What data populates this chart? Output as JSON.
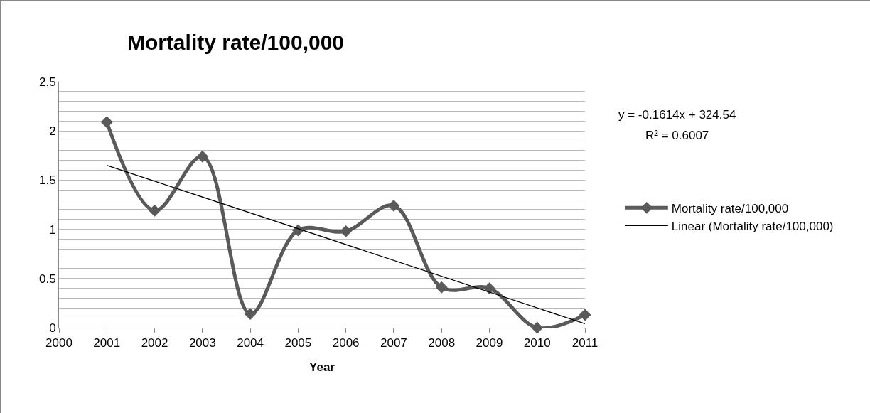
{
  "chart_data": {
    "type": "line",
    "title": "Mortality rate/100,000",
    "xlabel": "Year",
    "x": [
      2001,
      2002,
      2003,
      2004,
      2005,
      2006,
      2007,
      2008,
      2009,
      2010,
      2011
    ],
    "series": [
      {
        "name": "Mortality rate/100,000",
        "color": "#5a5a5a",
        "values": [
          2.09,
          1.19,
          1.74,
          0.14,
          0.99,
          0.98,
          1.24,
          0.41,
          0.4,
          0,
          0.13
        ],
        "marker": "diamond"
      },
      {
        "name": "Linear (Mortality rate/100,000)",
        "color": "#000000",
        "x": [
          2001,
          2011
        ],
        "values": [
          1.65,
          0.04
        ],
        "marker": "none"
      }
    ],
    "annotations": [
      "y = -0.1614x + 324.54",
      "R² = 0.6007"
    ],
    "xlim": [
      2000,
      2011
    ],
    "xticks": [
      2000,
      2001,
      2002,
      2003,
      2004,
      2005,
      2006,
      2007,
      2008,
      2009,
      2010,
      2011
    ],
    "ylim": [
      0,
      2.5
    ],
    "yticks": [
      0,
      {
        "value": 0.1,
        "label": null
      },
      {
        "value": 0.2,
        "label": null
      },
      {
        "value": 0.3,
        "label": null
      },
      {
        "value": 0.4,
        "label": null
      },
      0.5,
      {
        "value": 0.6,
        "label": null
      },
      {
        "value": 0.7,
        "label": null
      },
      {
        "value": 0.8,
        "label": null
      },
      {
        "value": 0.9,
        "label": null
      },
      1,
      {
        "value": 1.1,
        "label": null
      },
      {
        "value": 1.2,
        "label": null
      },
      {
        "value": 1.3,
        "label": null
      },
      {
        "value": 1.4,
        "label": null
      },
      1.5,
      {
        "value": 1.6,
        "label": null
      },
      {
        "value": 1.7,
        "label": null
      },
      {
        "value": 1.8,
        "label": null
      },
      {
        "value": 1.9,
        "label": null
      },
      2,
      {
        "value": 2.1,
        "label": null
      },
      {
        "value": 2.2,
        "label": null
      },
      {
        "value": 2.3,
        "label": null
      },
      {
        "value": 2.4,
        "label": null
      },
      2.5
    ],
    "grid": "y",
    "legend": "right",
    "line_style": "solid"
  }
}
